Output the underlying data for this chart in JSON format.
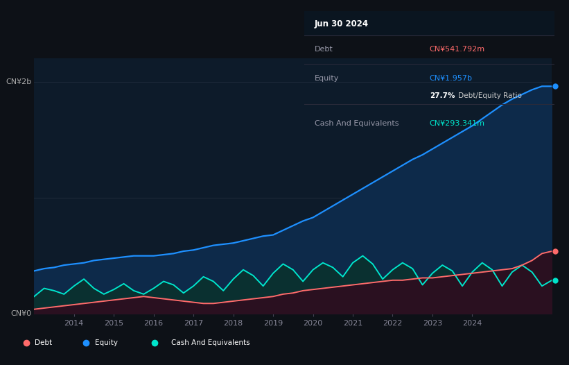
{
  "background_color": "#0d1117",
  "plot_bg_color": "#0d1b2a",
  "ylabel_top": "CN¥2b",
  "ylabel_bottom": "CN¥0",
  "x_ticks": [
    "2014",
    "2015",
    "2016",
    "2017",
    "2018",
    "2019",
    "2020",
    "2021",
    "2022",
    "2023",
    "2024"
  ],
  "equity_color": "#1e90ff",
  "debt_color": "#ff6b6b",
  "cash_color": "#00e5cc",
  "equity_fill": "#0d2a4a",
  "cash_fill": "#0a3030",
  "debt_label": "Debt",
  "equity_label": "Equity",
  "cash_label": "Cash And Equivalents",
  "tooltip_date": "Jun 30 2024",
  "tooltip_debt_val": "CN¥541.792m",
  "tooltip_equity_val": "CN¥1.957b",
  "tooltip_ratio_bold": "27.7%",
  "tooltip_ratio_rest": " Debt/Equity Ratio",
  "tooltip_cash_val": "CN¥293.341m",
  "ylim": [
    0,
    2.2
  ],
  "equity_data": [
    0.37,
    0.39,
    0.4,
    0.42,
    0.43,
    0.44,
    0.46,
    0.47,
    0.48,
    0.49,
    0.5,
    0.5,
    0.5,
    0.51,
    0.52,
    0.54,
    0.55,
    0.57,
    0.59,
    0.6,
    0.61,
    0.63,
    0.65,
    0.67,
    0.68,
    0.72,
    0.76,
    0.8,
    0.83,
    0.88,
    0.93,
    0.98,
    1.03,
    1.08,
    1.13,
    1.18,
    1.23,
    1.28,
    1.33,
    1.37,
    1.42,
    1.47,
    1.52,
    1.57,
    1.62,
    1.68,
    1.74,
    1.8,
    1.85,
    1.89,
    1.93,
    1.96,
    1.96
  ],
  "debt_data": [
    0.04,
    0.05,
    0.06,
    0.07,
    0.08,
    0.09,
    0.1,
    0.11,
    0.12,
    0.13,
    0.14,
    0.15,
    0.14,
    0.13,
    0.12,
    0.11,
    0.1,
    0.09,
    0.09,
    0.1,
    0.11,
    0.12,
    0.13,
    0.14,
    0.15,
    0.17,
    0.18,
    0.2,
    0.21,
    0.22,
    0.23,
    0.24,
    0.25,
    0.26,
    0.27,
    0.28,
    0.29,
    0.29,
    0.3,
    0.31,
    0.31,
    0.32,
    0.33,
    0.34,
    0.35,
    0.36,
    0.37,
    0.38,
    0.39,
    0.42,
    0.46,
    0.52,
    0.54
  ],
  "cash_data": [
    0.15,
    0.22,
    0.2,
    0.17,
    0.24,
    0.3,
    0.22,
    0.17,
    0.21,
    0.26,
    0.2,
    0.17,
    0.22,
    0.28,
    0.25,
    0.18,
    0.24,
    0.32,
    0.28,
    0.2,
    0.3,
    0.38,
    0.33,
    0.24,
    0.35,
    0.43,
    0.38,
    0.28,
    0.38,
    0.44,
    0.4,
    0.32,
    0.44,
    0.5,
    0.43,
    0.3,
    0.38,
    0.44,
    0.39,
    0.25,
    0.35,
    0.42,
    0.37,
    0.24,
    0.36,
    0.44,
    0.38,
    0.24,
    0.36,
    0.42,
    0.36,
    0.24,
    0.29
  ]
}
